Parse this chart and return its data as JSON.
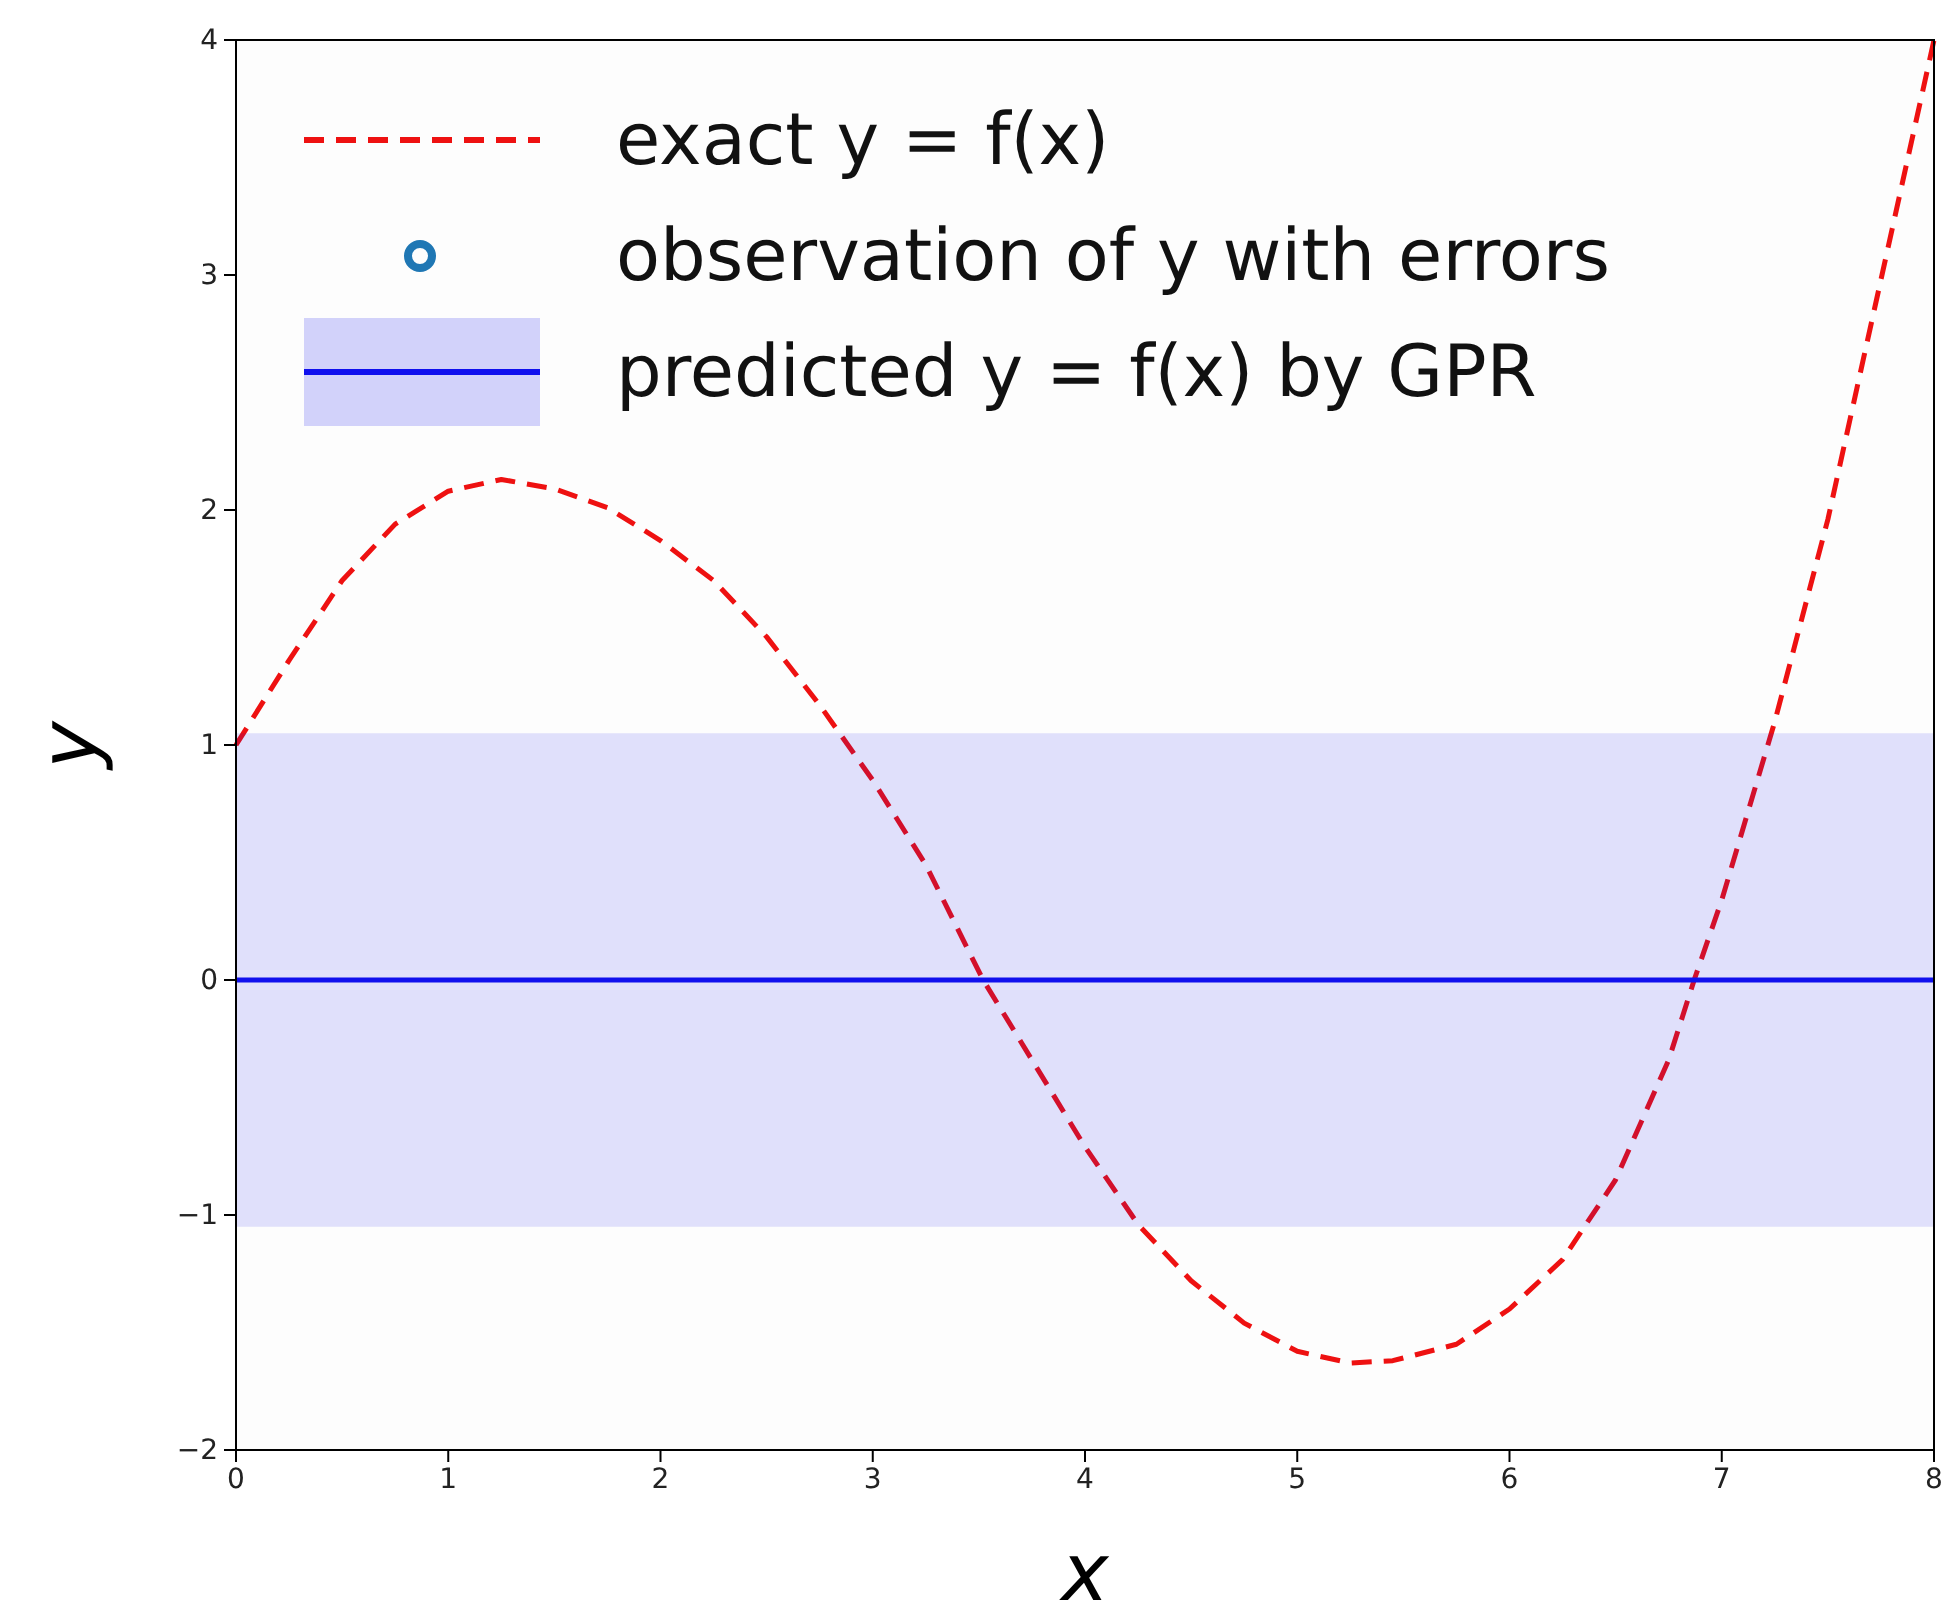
{
  "chart_data": {
    "type": "line",
    "xlabel": "x",
    "ylabel": "y",
    "xlim": [
      0,
      8
    ],
    "ylim": [
      -2,
      4
    ],
    "xticks": [
      0,
      1,
      2,
      3,
      4,
      5,
      6,
      7,
      8
    ],
    "yticks": [
      -2,
      -1,
      0,
      1,
      2,
      3,
      4
    ],
    "legend": "top left",
    "grid": false,
    "annotations": [
      "observation of y with errors"
    ],
    "series": [
      {
        "name": "exact  y = f(x)",
        "line_style": "dashed",
        "color": "#ee1111",
        "x": [
          0,
          0.25,
          0.5,
          0.75,
          1,
          1.25,
          1.5,
          1.75,
          2,
          2.25,
          2.5,
          2.75,
          3,
          3.25,
          3.52,
          3.75,
          4,
          4.25,
          4.5,
          4.75,
          5,
          5.25,
          5.45,
          5.75,
          6,
          6.25,
          6.5,
          6.75,
          6.87,
          7,
          7.25,
          7.5,
          7.75,
          8
        ],
        "values": [
          1.0,
          1.36,
          1.7,
          1.94,
          2.08,
          2.13,
          2.09,
          2.01,
          1.87,
          1.7,
          1.46,
          1.17,
          0.85,
          0.49,
          0,
          -0.34,
          -0.71,
          -1.04,
          -1.28,
          -1.46,
          -1.58,
          -1.63,
          -1.62,
          -1.55,
          -1.4,
          -1.19,
          -0.85,
          -0.34,
          0,
          0.34,
          1.1,
          1.96,
          2.98,
          4.0
        ]
      },
      {
        "name": "predicted y = f(x) by GPR",
        "line_style": "solid",
        "color": "#1010ee",
        "x": [
          0,
          8
        ],
        "values": [
          0,
          0
        ],
        "lower": [
          -1.05,
          -1.05
        ],
        "upper": [
          1.05,
          1.05
        ]
      }
    ]
  }
}
